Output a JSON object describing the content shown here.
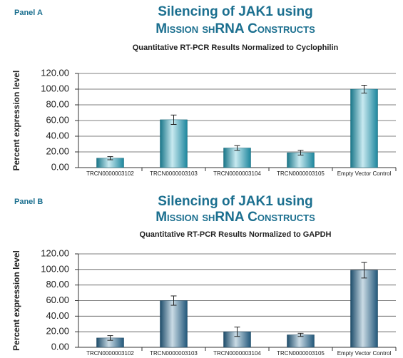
{
  "chart_data": [
    {
      "type": "bar",
      "label": "Panel A",
      "title": [
        "Silencing of JAK1 using",
        "Mission shRNA Constructs"
      ],
      "subtitle": "Quantitative RT-PCR Results Normalized to Cyclophilin",
      "ylabel": "Percent expression level",
      "categories": [
        "TRCN0000003102",
        "TRCN0000003103",
        "TRCN0000003104",
        "TRCN0000003105",
        "Empty Vector Control"
      ],
      "values": [
        12,
        61,
        25,
        19,
        100
      ],
      "errors": [
        2,
        6,
        3,
        3,
        5
      ],
      "color": "#24a8c4",
      "ylim": [
        0,
        120
      ],
      "yticks": [
        {
          "value": 0,
          "label": "0.00"
        },
        {
          "value": 20,
          "label": "20.00"
        },
        {
          "value": 40,
          "label": "40.00"
        },
        {
          "value": 60,
          "label": "60.00"
        },
        {
          "value": 80,
          "label": "80.00"
        },
        {
          "value": 100,
          "label": "100.00"
        },
        {
          "value": 120,
          "label": "120.00"
        }
      ],
      "grid": true
    },
    {
      "type": "bar",
      "label": "Panel B",
      "title": [
        "Silencing of JAK1 using",
        "Mission shRNA Constructs"
      ],
      "subtitle": "Quantitative RT-PCR Results Normalized to GAPDH",
      "ylabel": "Percent expression level",
      "categories": [
        "TRCN0000003102",
        "TRCN0000003103",
        "TRCN0000003104",
        "TRCN0000003105",
        "Empty Vector Control"
      ],
      "values": [
        12,
        60,
        20,
        16,
        99
      ],
      "errors": [
        3,
        6,
        6,
        2,
        10
      ],
      "color": "#2a6d98",
      "ylim": [
        0,
        120
      ],
      "yticks": [
        {
          "value": 0,
          "label": "0.00"
        },
        {
          "value": 20,
          "label": "20.00"
        },
        {
          "value": 40,
          "label": "40.00"
        },
        {
          "value": 60,
          "label": "60.00"
        },
        {
          "value": 80,
          "label": "80.00"
        },
        {
          "value": 100,
          "label": "100.00"
        },
        {
          "value": 120,
          "label": "120.00"
        }
      ],
      "grid": true
    }
  ]
}
